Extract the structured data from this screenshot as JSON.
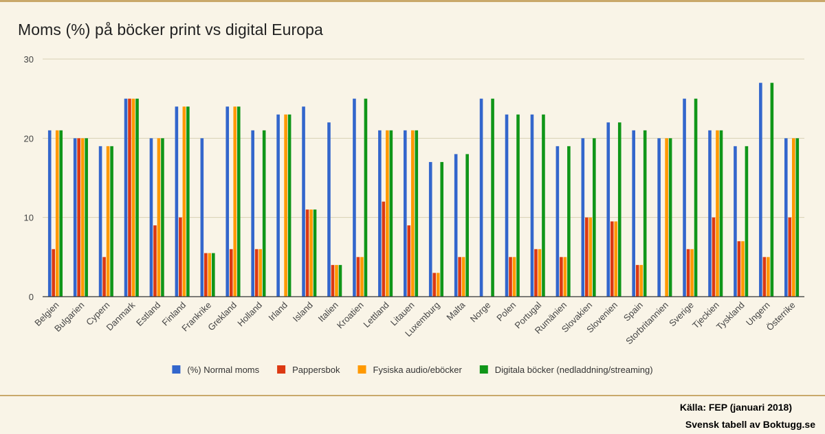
{
  "title": "Moms (%) på böcker print vs digital Europa",
  "credits": [
    "Källa: FEP (januari 2018)",
    "Svensk tabell av Boktugg.se"
  ],
  "colors": {
    "background": "#f9f4e7",
    "grid": "#d8cfb4",
    "axis": "#333333",
    "rule": "#c9a86a"
  },
  "chart_data": {
    "type": "bar",
    "title": "Moms (%) på böcker print vs digital Europa",
    "xlabel": "",
    "ylabel": "",
    "ylim": [
      0,
      30
    ],
    "yticks": [
      0,
      10,
      20,
      30
    ],
    "grid": true,
    "legend_position": "bottom",
    "categories": [
      "Belgien",
      "Bulgarien",
      "Cypern",
      "Danmark",
      "Estland",
      "Finland",
      "Frankrike",
      "Grekland",
      "Holland",
      "Irland",
      "Island",
      "Italien",
      "Kroatien",
      "Lettland",
      "Litauen",
      "Luxemburg",
      "Malta",
      "Norge",
      "Polen",
      "Portugal",
      "Rumänien",
      "Slovakien",
      "Slovenien",
      "Spain",
      "Storbritannien",
      "Sverige",
      "Tjeckien",
      "Tyskland",
      "Ungern",
      "Österrike"
    ],
    "series": [
      {
        "name": "(%) Normal moms",
        "color": "#3366cc",
        "values": [
          21,
          20,
          19,
          25,
          20,
          24,
          20,
          24,
          21,
          23,
          24,
          22,
          25,
          21,
          21,
          17,
          18,
          25,
          23,
          23,
          19,
          20,
          22,
          21,
          20,
          25,
          21,
          19,
          27,
          20
        ]
      },
      {
        "name": "Pappersbok",
        "color": "#dc3912",
        "values": [
          6,
          20,
          5,
          25,
          9,
          10,
          5.5,
          6,
          6,
          0,
          11,
          4,
          5,
          12,
          9,
          3,
          5,
          0,
          5,
          6,
          5,
          10,
          9.5,
          4,
          0,
          6,
          10,
          7,
          5,
          10
        ]
      },
      {
        "name": "Fysiska audio/eböcker",
        "color": "#ff9900",
        "values": [
          21,
          20,
          19,
          25,
          20,
          24,
          5.5,
          24,
          6,
          23,
          11,
          4,
          5,
          21,
          21,
          3,
          5,
          0,
          5,
          6,
          5,
          10,
          9.5,
          4,
          20,
          6,
          21,
          7,
          5,
          20
        ]
      },
      {
        "name": "Digitala böcker (nedladdning/streaming)",
        "color": "#109618",
        "values": [
          21,
          20,
          19,
          25,
          20,
          24,
          5.5,
          24,
          21,
          23,
          11,
          4,
          25,
          21,
          21,
          17,
          18,
          25,
          23,
          23,
          19,
          20,
          22,
          21,
          20,
          25,
          21,
          19,
          27,
          20
        ]
      }
    ]
  }
}
